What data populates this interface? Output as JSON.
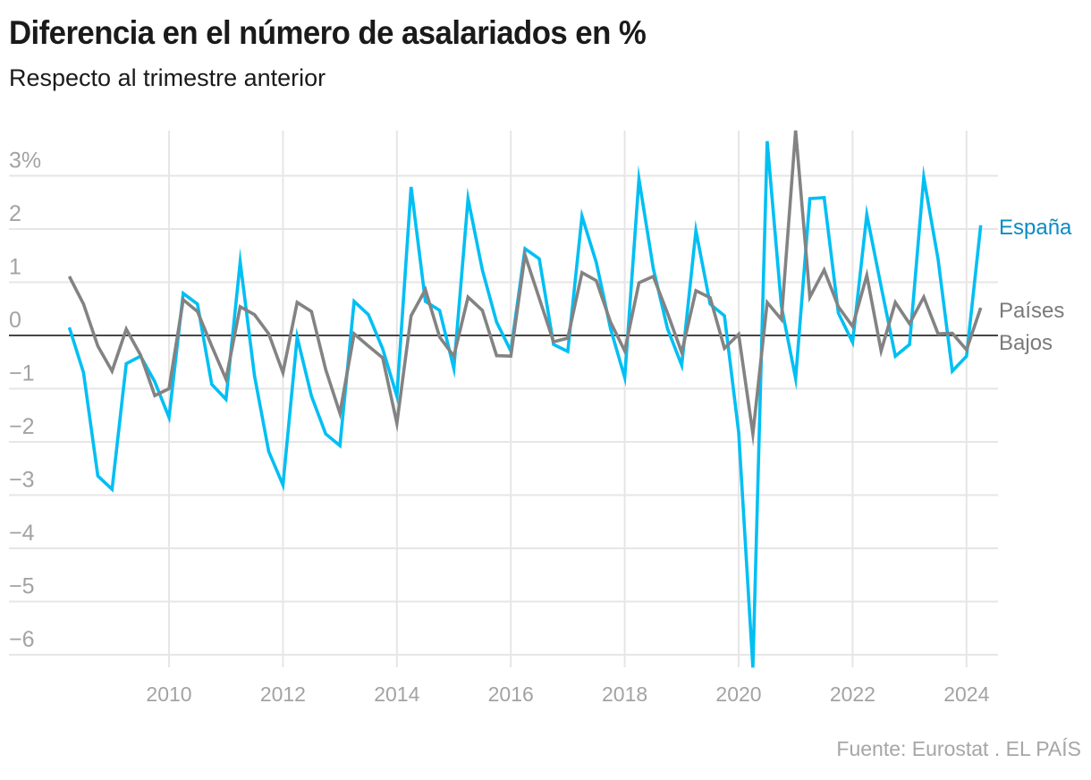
{
  "header": {
    "title": "Diferencia en el número de asalariados en %",
    "subtitle": "Respecto al trimestre anterior"
  },
  "footer": {
    "source": "Fuente: Eurostat . EL PAÍS"
  },
  "chart_data": {
    "type": "line",
    "title": "Diferencia en el número de asalariados en %",
    "subtitle": "Respecto al trimestre anterior",
    "xlabel": "",
    "ylabel": "",
    "x_start": "2008 T2",
    "x_frequency": "quarterly",
    "x_start_year_fraction": 2008.25,
    "xlim": [
      2008.25,
      2024.25
    ],
    "ylim": [
      -6.3,
      3.9
    ],
    "grid": true,
    "baseline": 0,
    "x_ticks": [
      2010,
      2012,
      2014,
      2016,
      2018,
      2020,
      2022,
      2024
    ],
    "x_tick_labels": [
      "2010",
      "2012",
      "2014",
      "2016",
      "2018",
      "2020",
      "2022",
      "2024"
    ],
    "y_ticks": [
      3,
      2,
      1,
      0,
      -1,
      -2,
      -3,
      -4,
      -5,
      -6
    ],
    "y_tick_labels": [
      "3%",
      "2",
      "1",
      "0",
      "−1",
      "−2",
      "−3",
      "−4",
      "−5",
      "−6"
    ],
    "legend": "direct labels at right end of lines",
    "series": [
      {
        "name": "España",
        "color": "#00bff3",
        "label_color": "#0a8cc4",
        "label_lines": [
          "España"
        ],
        "values": [
          0.15,
          -0.7,
          -2.64,
          -2.89,
          -0.53,
          -0.39,
          -0.87,
          -1.54,
          0.79,
          0.59,
          -0.92,
          -1.2,
          1.38,
          -0.76,
          -2.18,
          -2.81,
          -0.03,
          -1.14,
          -1.85,
          -2.07,
          0.64,
          0.39,
          -0.25,
          -1.14,
          2.79,
          0.64,
          0.47,
          -0.62,
          2.57,
          1.23,
          0.25,
          -0.29,
          1.63,
          1.44,
          -0.17,
          -0.3,
          2.24,
          1.37,
          0.13,
          -0.79,
          2.94,
          1.26,
          0.13,
          -0.56,
          1.97,
          0.59,
          0.37,
          -1.82,
          -6.24,
          3.65,
          0.55,
          -0.81,
          2.57,
          2.59,
          0.42,
          -0.13,
          2.27,
          0.92,
          -0.39,
          -0.17,
          2.97,
          1.43,
          -0.67,
          -0.39,
          2.07
        ]
      },
      {
        "name": "Países Bajos",
        "color": "#838383",
        "label_color": "#7a7a7a",
        "label_lines": [
          "Países",
          "Bajos"
        ],
        "values": [
          1.11,
          0.59,
          -0.2,
          -0.67,
          0.12,
          -0.37,
          -1.13,
          -1.0,
          0.67,
          0.45,
          -0.2,
          -0.82,
          0.54,
          0.39,
          0.03,
          -0.7,
          0.62,
          0.45,
          -0.64,
          -1.46,
          0.03,
          -0.2,
          -0.42,
          -1.65,
          0.37,
          0.86,
          -0.03,
          -0.39,
          0.72,
          0.47,
          -0.38,
          -0.39,
          1.51,
          0.7,
          -0.12,
          -0.05,
          1.18,
          1.03,
          0.25,
          -0.29,
          0.99,
          1.11,
          0.42,
          -0.32,
          0.84,
          0.71,
          -0.24,
          0.02,
          -1.85,
          0.62,
          0.3,
          3.85,
          0.72,
          1.23,
          0.54,
          0.17,
          1.13,
          -0.29,
          0.62,
          0.22,
          0.72,
          0.03,
          0.04,
          -0.27,
          0.52
        ]
      }
    ]
  }
}
